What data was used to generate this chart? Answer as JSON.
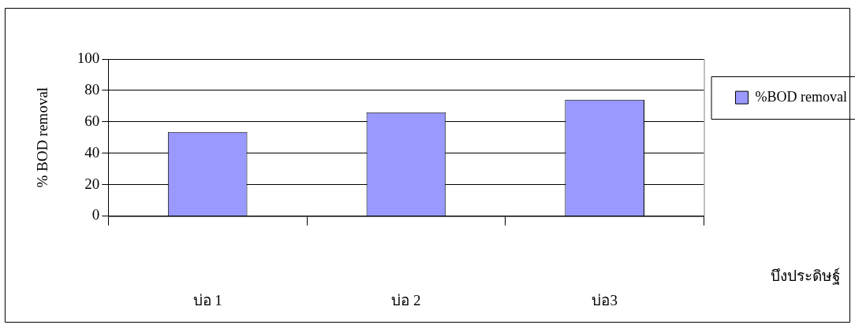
{
  "chart_data": {
    "type": "bar",
    "ylabel": "% BOD removal",
    "xlabel": "บึงประดิษฐ์",
    "categories": [
      "บ่อ 1",
      "บ่อ 2",
      "บ่อ3"
    ],
    "series": [
      {
        "name": "%BOD removal",
        "color": "#9999ff",
        "values": [
          53.5,
          66,
          74
        ]
      }
    ],
    "ylim": [
      0,
      100
    ],
    "yticks": [
      0,
      20,
      40,
      60,
      80,
      100
    ],
    "grid": "y",
    "legend": "top right"
  }
}
